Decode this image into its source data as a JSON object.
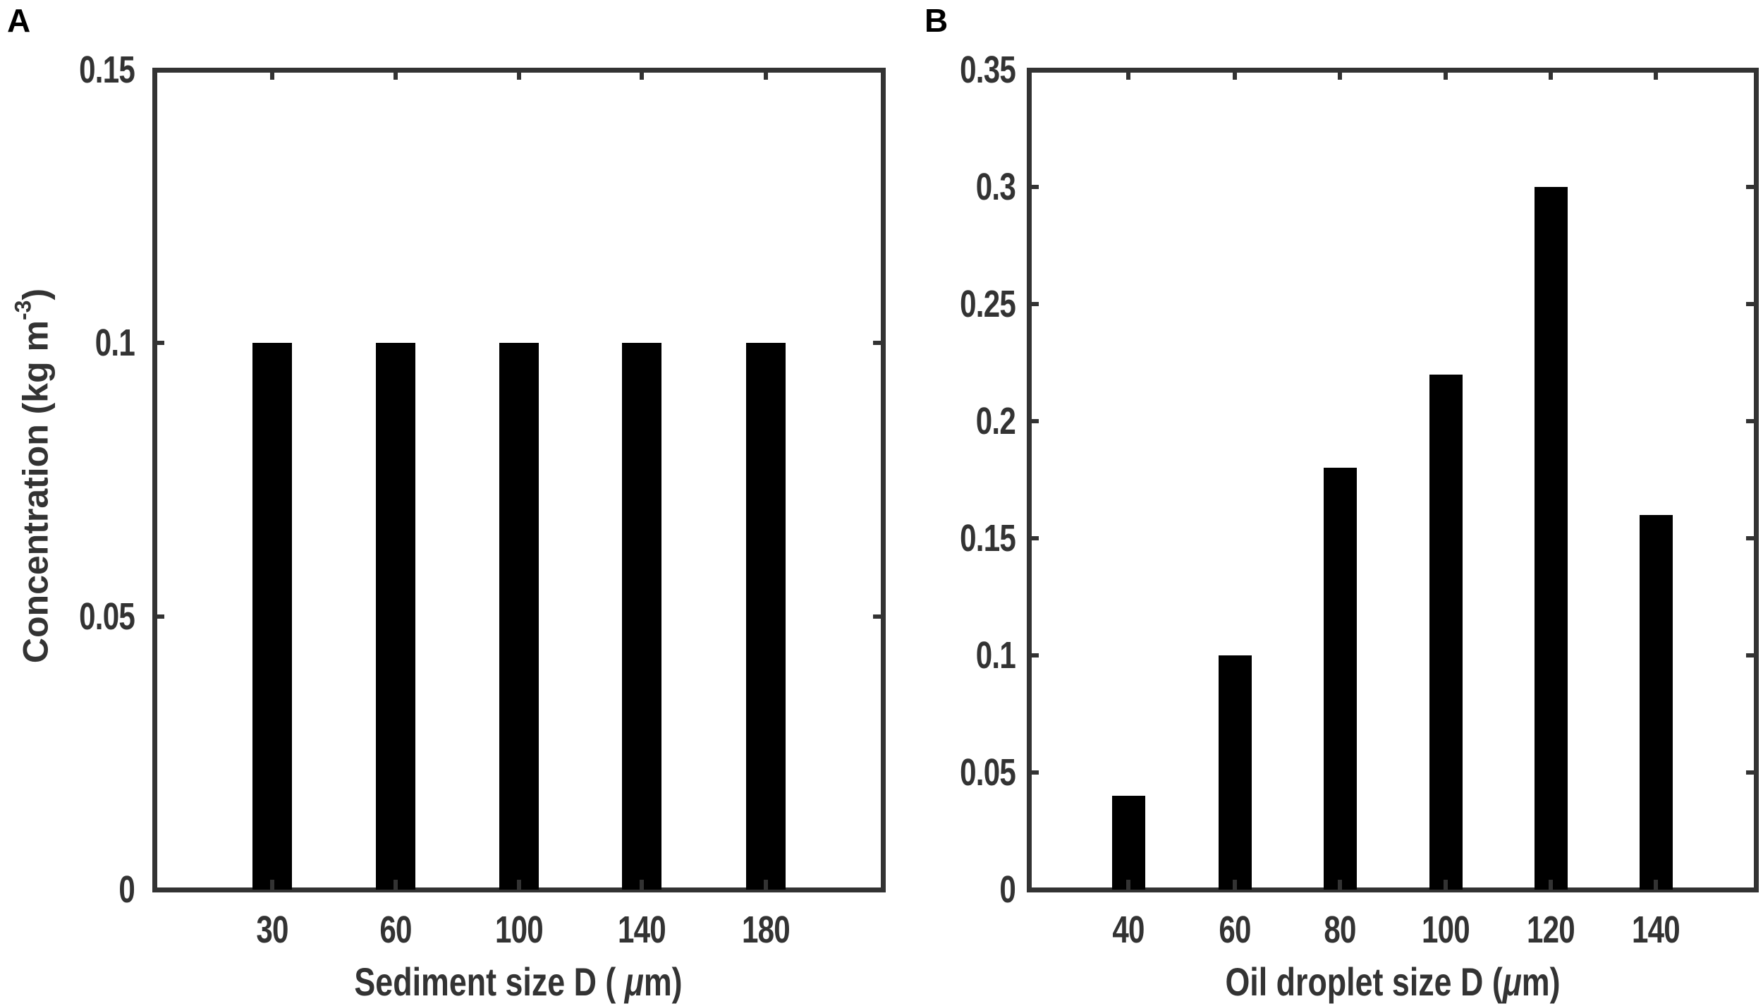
{
  "panels": {
    "a": {
      "letter": "A",
      "ylabel_main": "Concentration (kg m",
      "ylabel_sup": "-3",
      "ylabel_close": ")",
      "xlabel_pre": "Sediment size D ( ",
      "xlabel_mu": "μ",
      "xlabel_post": "m)",
      "yticks": [
        "0",
        "0.05",
        "0.1",
        "0.15"
      ],
      "xticks": [
        "30",
        "60",
        "100",
        "140",
        "180"
      ]
    },
    "b": {
      "letter": "B",
      "xlabel_pre": "Oil droplet size D (",
      "xlabel_mu": "μ",
      "xlabel_post": "m)",
      "yticks": [
        "0",
        "0.05",
        "0.1",
        "0.15",
        "0.2",
        "0.25",
        "0.3",
        "0.35"
      ],
      "xticks": [
        "40",
        "60",
        "80",
        "100",
        "120",
        "140"
      ]
    }
  },
  "colors": {
    "bar": "#000000",
    "axis": "#333333",
    "text": "#333333"
  },
  "chart_data": [
    {
      "type": "bar",
      "panel": "A",
      "title": "",
      "categories": [
        "30",
        "60",
        "100",
        "140",
        "180"
      ],
      "values": [
        0.1,
        0.1,
        0.1,
        0.1,
        0.1
      ],
      "xlabel": "Sediment size D ( μm)",
      "ylabel": "Concentration (kg m^-3)",
      "ylim": [
        0,
        0.15
      ],
      "yticks": [
        0,
        0.05,
        0.1,
        0.15
      ],
      "grid": false,
      "legend": null
    },
    {
      "type": "bar",
      "panel": "B",
      "title": "",
      "categories": [
        "40",
        "60",
        "80",
        "100",
        "120",
        "140"
      ],
      "values": [
        0.04,
        0.1,
        0.18,
        0.22,
        0.3,
        0.16
      ],
      "xlabel": "Oil droplet size D (μm)",
      "ylabel": "",
      "ylim": [
        0,
        0.35
      ],
      "yticks": [
        0,
        0.05,
        0.1,
        0.15,
        0.2,
        0.25,
        0.3,
        0.35
      ],
      "grid": false,
      "legend": null
    }
  ]
}
